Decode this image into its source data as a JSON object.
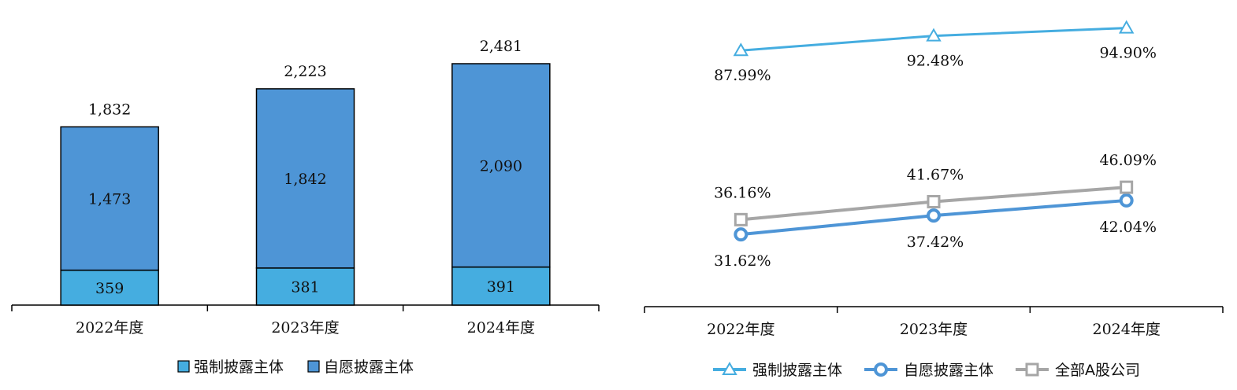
{
  "chart_data": [
    {
      "type": "bar",
      "stacked": true,
      "categories": [
        "2022年度",
        "2023年度",
        "2024年度"
      ],
      "series": [
        {
          "name": "强制披露主体",
          "values": [
            359,
            381,
            391
          ],
          "color": "#45ADE0"
        },
        {
          "name": "自愿披露主体",
          "values": [
            1473,
            1842,
            2090
          ],
          "color": "#4E95D6"
        }
      ],
      "value_labels": {
        "bottom": [
          "359",
          "381",
          "391"
        ],
        "top": [
          "1,473",
          "1,842",
          "2,090"
        ],
        "totals": [
          "1,832",
          "2,223",
          "2,481"
        ]
      },
      "ylim": [
        0,
        2481
      ],
      "grid": false,
      "legend_position": "bottom"
    },
    {
      "type": "line",
      "categories": [
        "2022年度",
        "2023年度",
        "2024年度"
      ],
      "series": [
        {
          "name": "强制披露主体",
          "values": [
            87.99,
            92.48,
            94.9
          ],
          "labels": [
            "87.99%",
            "92.48%",
            "94.90%"
          ],
          "color": "#45ADE0",
          "marker": "triangle"
        },
        {
          "name": "自愿披露主体",
          "values": [
            31.62,
            37.42,
            42.04
          ],
          "labels": [
            "31.62%",
            "37.42%",
            "42.04%"
          ],
          "color": "#4E95D6",
          "marker": "circle"
        },
        {
          "name": "全部A股公司",
          "values": [
            36.16,
            41.67,
            46.09
          ],
          "labels": [
            "36.16%",
            "41.67%",
            "46.09%"
          ],
          "color": "#A6A6A6",
          "marker": "square"
        }
      ],
      "unit": "%",
      "grid": false,
      "legend_position": "bottom"
    }
  ]
}
